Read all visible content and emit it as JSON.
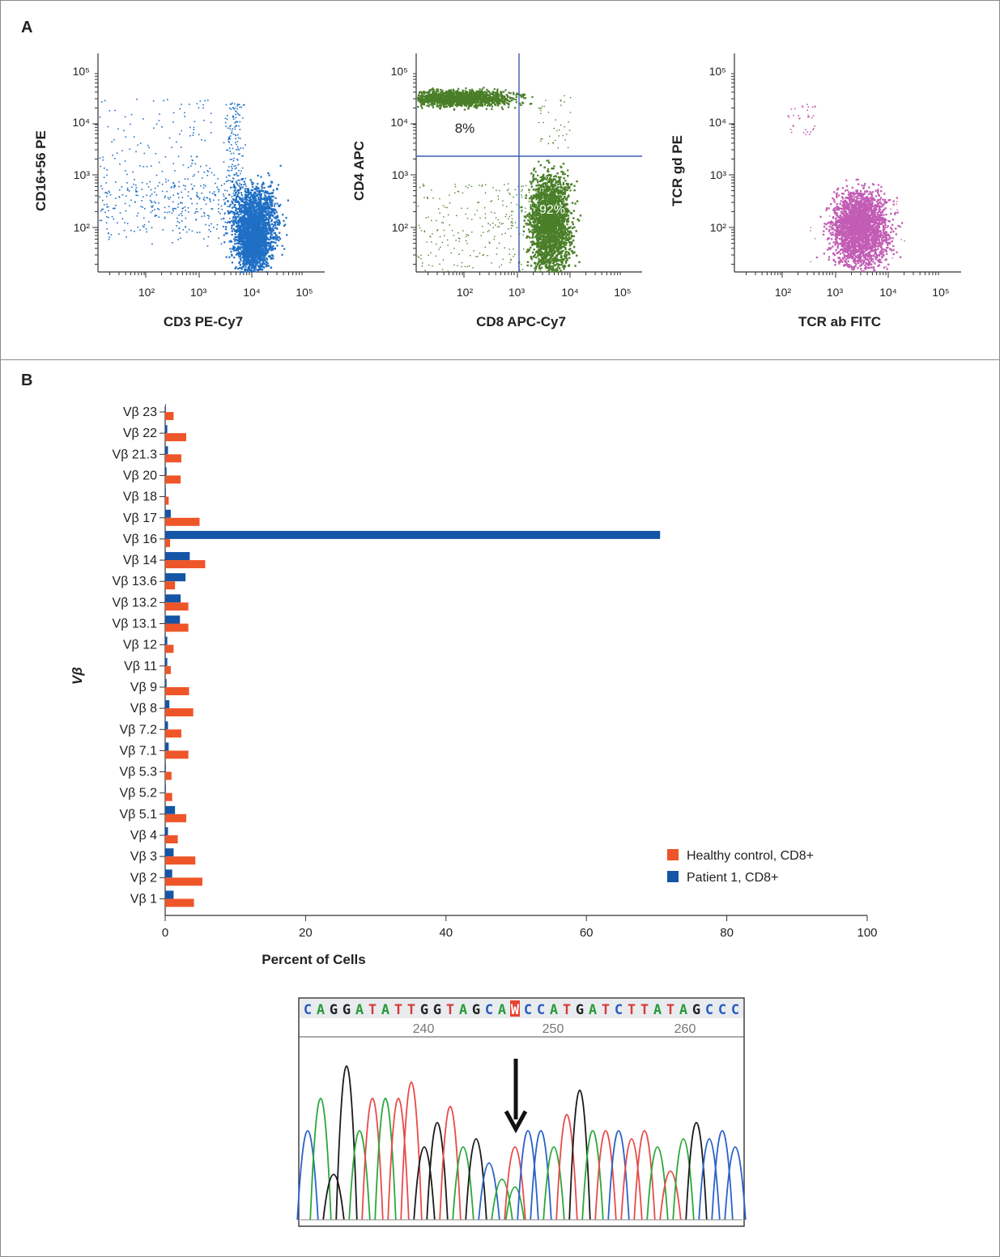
{
  "panel_a": {
    "label": "A",
    "plots": [
      {
        "ylabel": "CD16+56 PE",
        "xlabel": "CD3 PE-Cy7",
        "color": "#1f6fc5",
        "gates": []
      },
      {
        "ylabel": "CD4 APC",
        "xlabel": "CD8 APC-Cy7",
        "color": "#4a7f28",
        "gates": [
          "8%",
          "92%"
        ]
      },
      {
        "ylabel": "TCR gd PE",
        "xlabel": "TCR ab FITC",
        "color": "#c25cb4",
        "gates": []
      }
    ],
    "tick_labels": [
      "10²",
      "10³",
      "10⁴",
      "10⁵"
    ]
  },
  "panel_b": {
    "label": "B",
    "chart_data": {
      "type": "bar",
      "orientation": "horizontal",
      "ylabel": "Vβ",
      "xlabel": "Percent of Cells",
      "xlim": [
        0,
        100
      ],
      "xticks": [
        0,
        20,
        40,
        60,
        80,
        100
      ],
      "categories": [
        "Vβ 23",
        "Vβ 22",
        "Vβ 21.3",
        "Vβ 20",
        "Vβ 18",
        "Vβ 17",
        "Vβ 16",
        "Vβ 14",
        "Vβ 13.6",
        "Vβ 13.2",
        "Vβ 13.1",
        "Vβ 12",
        "Vβ 11",
        "Vβ 9",
        "Vβ 8",
        "Vβ 7.2",
        "Vβ 7.1",
        "Vβ 5.3",
        "Vβ 5.2",
        "Vβ 5.1",
        "Vβ 4",
        "Vβ 3",
        "Vβ 2",
        "Vβ 1"
      ],
      "series": [
        {
          "name": "Patient 1, CD8+",
          "color": "#1555a5",
          "values": [
            0.1,
            0.3,
            0.4,
            0.2,
            0.1,
            0.8,
            70.5,
            3.5,
            2.9,
            2.2,
            2.1,
            0.3,
            0.3,
            0.2,
            0.6,
            0.4,
            0.5,
            0.1,
            0.1,
            1.4,
            0.4,
            1.2,
            1.0,
            1.2
          ]
        },
        {
          "name": "Healthy control, CD8+",
          "color": "#ee5528",
          "values": [
            1.2,
            3.0,
            2.3,
            2.2,
            0.5,
            4.9,
            0.7,
            5.7,
            1.4,
            3.3,
            3.3,
            1.2,
            0.8,
            3.4,
            4.0,
            2.3,
            3.3,
            0.9,
            1.0,
            3.0,
            1.8,
            4.3,
            5.3,
            4.1
          ]
        }
      ],
      "legend_position": "lower-right"
    },
    "sequence": {
      "bases": "CAGGATATTGGTAGCAWCCATGATCTTATAGCCC",
      "positions": [
        "240",
        "250",
        "260"
      ]
    }
  }
}
